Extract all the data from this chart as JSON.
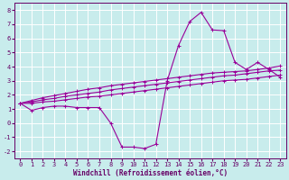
{
  "xlabel": "Windchill (Refroidissement éolien,°C)",
  "bg_color": "#c8ecec",
  "grid_color": "#ffffff",
  "line_color": "#990099",
  "x_data": [
    0,
    1,
    2,
    3,
    4,
    5,
    6,
    7,
    8,
    9,
    10,
    11,
    12,
    13,
    14,
    15,
    16,
    17,
    18,
    19,
    20,
    21,
    22,
    23
  ],
  "y_main": [
    1.4,
    0.9,
    1.1,
    1.2,
    1.2,
    1.1,
    1.1,
    1.1,
    0.0,
    -1.7,
    -1.7,
    -1.8,
    -1.5,
    3.0,
    5.5,
    7.2,
    7.85,
    6.6,
    6.55,
    4.3,
    3.8,
    4.3,
    3.8,
    3.25
  ],
  "y_line1": [
    1.4,
    1.4,
    1.5,
    1.55,
    1.65,
    1.75,
    1.85,
    1.9,
    2.0,
    2.1,
    2.2,
    2.3,
    2.4,
    2.5,
    2.6,
    2.7,
    2.8,
    2.9,
    3.0,
    3.05,
    3.1,
    3.2,
    3.3,
    3.4
  ],
  "y_line2": [
    1.4,
    1.5,
    1.65,
    1.75,
    1.9,
    2.0,
    2.1,
    2.2,
    2.35,
    2.45,
    2.55,
    2.65,
    2.75,
    2.85,
    2.95,
    3.05,
    3.15,
    3.25,
    3.35,
    3.4,
    3.5,
    3.6,
    3.7,
    3.75
  ],
  "y_line3": [
    1.4,
    1.6,
    1.8,
    1.95,
    2.1,
    2.25,
    2.4,
    2.5,
    2.65,
    2.75,
    2.85,
    2.95,
    3.05,
    3.15,
    3.25,
    3.35,
    3.45,
    3.55,
    3.6,
    3.65,
    3.7,
    3.8,
    3.9,
    4.05
  ],
  "ylim": [
    -2.5,
    8.5
  ],
  "xlim": [
    -0.5,
    23.5
  ],
  "yticks": [
    -2,
    -1,
    0,
    1,
    2,
    3,
    4,
    5,
    6,
    7,
    8
  ],
  "xticks": [
    0,
    1,
    2,
    3,
    4,
    5,
    6,
    7,
    8,
    9,
    10,
    11,
    12,
    13,
    14,
    15,
    16,
    17,
    18,
    19,
    20,
    21,
    22,
    23
  ]
}
